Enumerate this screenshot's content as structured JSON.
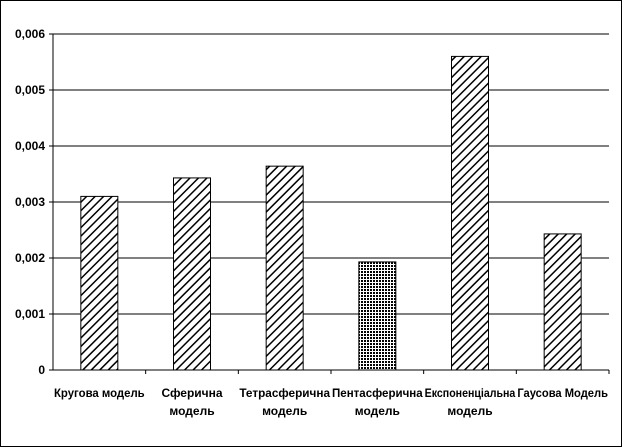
{
  "chart_data": {
    "type": "bar",
    "categories": [
      [
        "Кругова модель"
      ],
      [
        "Сферична",
        "модель"
      ],
      [
        "Тетрасферична",
        "модель"
      ],
      [
        "Пентасферична",
        "модель"
      ],
      [
        "Експоненціальна",
        "модель"
      ],
      [
        "Гаусова Модель"
      ]
    ],
    "values": [
      0.0031,
      0.00343,
      0.00364,
      0.00193,
      0.0056,
      0.00243
    ],
    "patterns": [
      "diagonal",
      "diagonal",
      "diagonal",
      "crosshatch",
      "diagonal",
      "diagonal"
    ],
    "yticks": [
      "0",
      "0,001",
      "0,002",
      "0,003",
      "0,004",
      "0,005",
      "0,006"
    ],
    "ylim": [
      0,
      0.006
    ],
    "grid": true,
    "title": "",
    "xlabel": "",
    "ylabel": ""
  }
}
